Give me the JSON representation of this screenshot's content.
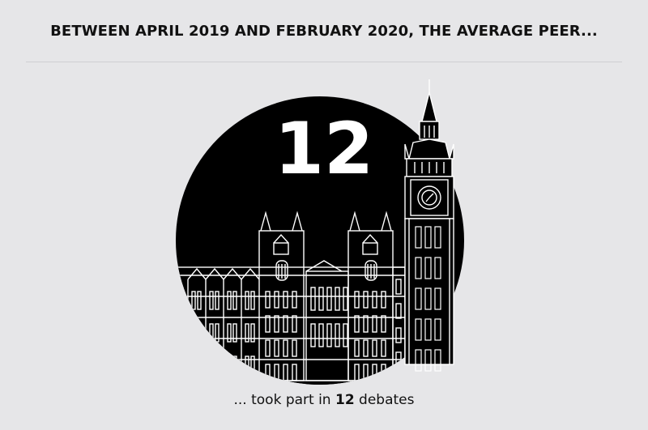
{
  "headline": "BETWEEN APRIL 2019 AND FEBRUARY 2020, THE AVERAGE PEER...",
  "stat": {
    "value": "12"
  },
  "caption": {
    "prefix": "... took part in ",
    "value": "12",
    "suffix": " debates"
  },
  "colors": {
    "background": "#e6e6e8",
    "circle": "#000000",
    "text": "#111111",
    "linework": "#ffffff"
  },
  "illustration": {
    "subject": "houses-of-parliament-with-big-ben-icon"
  }
}
